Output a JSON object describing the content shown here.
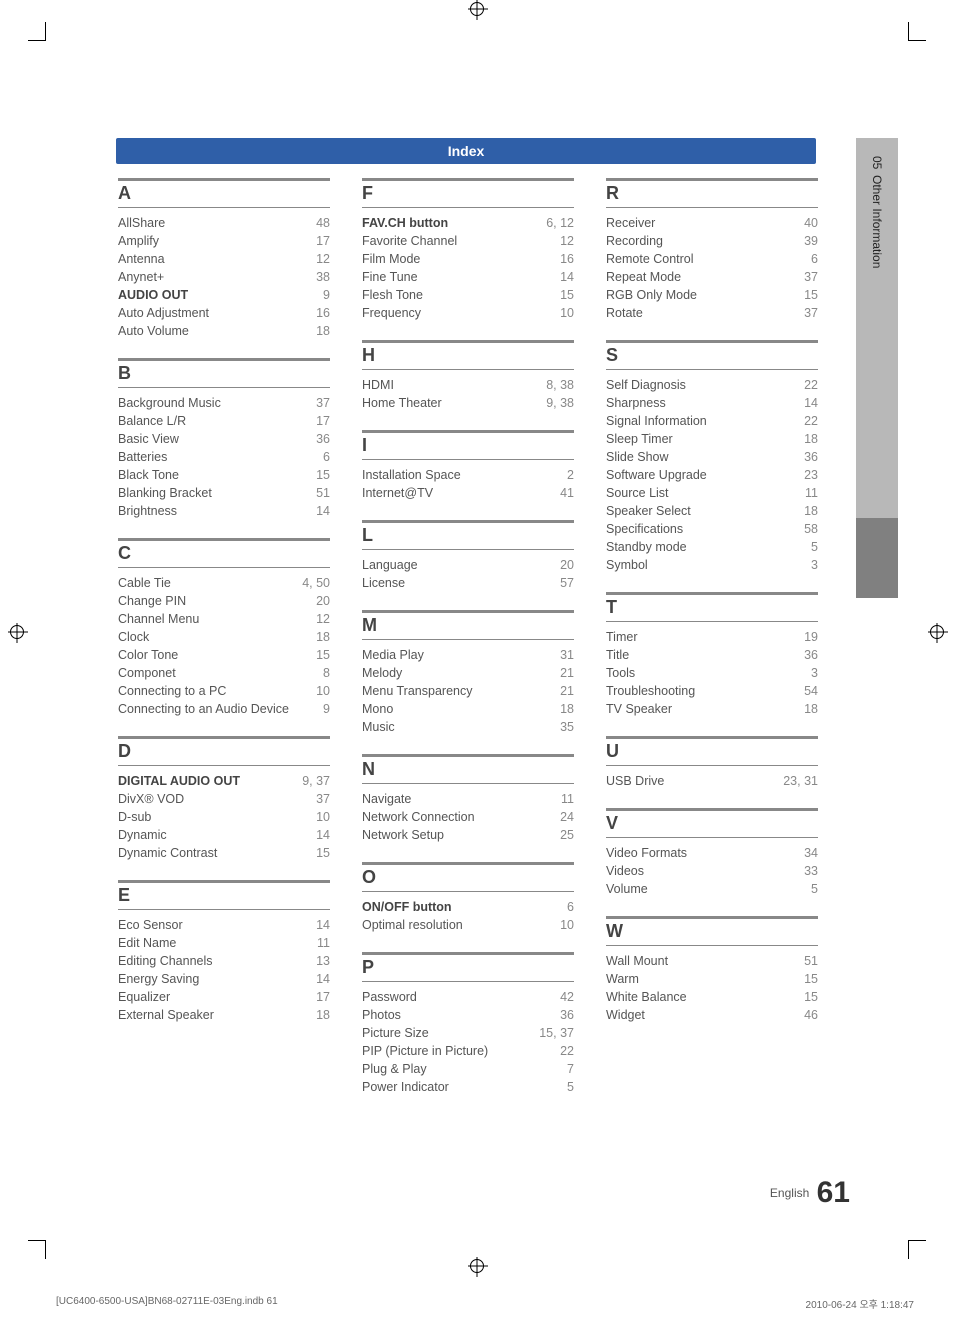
{
  "header": {
    "title": "Index"
  },
  "sidetab": {
    "chapter_num": "05",
    "chapter_title": "Other Information"
  },
  "footer": {
    "language": "English",
    "page_number": "61"
  },
  "print_info": {
    "file": "[UC6400-6500-USA]BN68-02711E-03Eng.indb   61",
    "timestamp": "2010-06-24   오후 1:18:47"
  },
  "columns": [
    [
      {
        "letter": "A",
        "entries": [
          {
            "term": "AllShare",
            "page": "48"
          },
          {
            "term": "Amplify",
            "page": "17"
          },
          {
            "term": "Antenna",
            "page": "12"
          },
          {
            "term": "Anynet+",
            "page": "38"
          },
          {
            "term": "AUDIO OUT",
            "page": "9",
            "bold": true
          },
          {
            "term": "Auto Adjustment",
            "page": "16"
          },
          {
            "term": "Auto Volume",
            "page": "18"
          }
        ]
      },
      {
        "letter": "B",
        "entries": [
          {
            "term": "Background Music",
            "page": "37"
          },
          {
            "term": "Balance L/R",
            "page": "17"
          },
          {
            "term": "Basic View",
            "page": "36"
          },
          {
            "term": "Batteries",
            "page": "6"
          },
          {
            "term": "Black Tone",
            "page": "15"
          },
          {
            "term": "Blanking Bracket",
            "page": "51"
          },
          {
            "term": "Brightness",
            "page": "14"
          }
        ]
      },
      {
        "letter": "C",
        "entries": [
          {
            "term": "Cable Tie",
            "page": "4, 50"
          },
          {
            "term": "Change PIN",
            "page": "20"
          },
          {
            "term": "Channel Menu",
            "page": "12"
          },
          {
            "term": "Clock",
            "page": "18"
          },
          {
            "term": "Color Tone",
            "page": "15"
          },
          {
            "term": "Componet",
            "page": "8"
          },
          {
            "term": "Connecting to a PC",
            "page": "10"
          },
          {
            "term": "Connecting to an Audio Device",
            "page": "9"
          }
        ]
      },
      {
        "letter": "D",
        "entries": [
          {
            "term": "DIGITAL AUDIO OUT",
            "page": "9, 37",
            "bold": true
          },
          {
            "term": "DivX® VOD",
            "page": "37"
          },
          {
            "term": "D-sub",
            "page": "10"
          },
          {
            "term": "Dynamic",
            "page": "14"
          },
          {
            "term": "Dynamic Contrast",
            "page": "15"
          }
        ]
      },
      {
        "letter": "E",
        "entries": [
          {
            "term": "Eco Sensor",
            "page": "14"
          },
          {
            "term": "Edit Name",
            "page": "11"
          },
          {
            "term": "Editing Channels",
            "page": "13"
          },
          {
            "term": "Energy Saving",
            "page": "14"
          },
          {
            "term": "Equalizer",
            "page": "17"
          },
          {
            "term": "External Speaker",
            "page": "18"
          }
        ]
      }
    ],
    [
      {
        "letter": "F",
        "entries": [
          {
            "term": "FAV.CH button",
            "page": "6, 12",
            "bold": true
          },
          {
            "term": "Favorite Channel",
            "page": "12"
          },
          {
            "term": "Film Mode",
            "page": "16"
          },
          {
            "term": "Fine Tune",
            "page": "14"
          },
          {
            "term": "Flesh Tone",
            "page": "15"
          },
          {
            "term": "Frequency",
            "page": "10"
          }
        ]
      },
      {
        "letter": "H",
        "entries": [
          {
            "term": "HDMI",
            "page": "8, 38"
          },
          {
            "term": "Home Theater",
            "page": "9, 38"
          }
        ]
      },
      {
        "letter": "I",
        "entries": [
          {
            "term": "Installation Space",
            "page": "2"
          },
          {
            "term": "Internet@TV",
            "page": "41"
          }
        ]
      },
      {
        "letter": "L",
        "entries": [
          {
            "term": "Language",
            "page": "20"
          },
          {
            "term": "License",
            "page": "57"
          }
        ]
      },
      {
        "letter": "M",
        "entries": [
          {
            "term": "Media Play",
            "page": "31"
          },
          {
            "term": "Melody",
            "page": "21"
          },
          {
            "term": "Menu Transparency",
            "page": "21"
          },
          {
            "term": "Mono",
            "page": "18"
          },
          {
            "term": "Music",
            "page": "35"
          }
        ]
      },
      {
        "letter": "N",
        "entries": [
          {
            "term": "Navigate",
            "page": "11"
          },
          {
            "term": "Network Connection",
            "page": "24"
          },
          {
            "term": "Network Setup",
            "page": "25"
          }
        ]
      },
      {
        "letter": "O",
        "entries": [
          {
            "term": "ON/OFF button",
            "page": "6",
            "bold": true
          },
          {
            "term": "Optimal resolution",
            "page": "10"
          }
        ]
      },
      {
        "letter": "P",
        "entries": [
          {
            "term": "Password",
            "page": "42"
          },
          {
            "term": "Photos",
            "page": "36"
          },
          {
            "term": "Picture Size",
            "page": "15, 37"
          },
          {
            "term": "PIP (Picture in Picture)",
            "page": "22"
          },
          {
            "term": "Plug & Play",
            "page": "7"
          },
          {
            "term": "Power Indicator",
            "page": "5"
          }
        ]
      }
    ],
    [
      {
        "letter": "R",
        "entries": [
          {
            "term": "Receiver",
            "page": "40"
          },
          {
            "term": "Recording",
            "page": "39"
          },
          {
            "term": "Remote Control",
            "page": "6"
          },
          {
            "term": "Repeat Mode",
            "page": "37"
          },
          {
            "term": "RGB Only Mode",
            "page": "15"
          },
          {
            "term": "Rotate",
            "page": "37"
          }
        ]
      },
      {
        "letter": "S",
        "entries": [
          {
            "term": "Self Diagnosis",
            "page": "22"
          },
          {
            "term": "Sharpness",
            "page": "14"
          },
          {
            "term": "Signal Information",
            "page": "22"
          },
          {
            "term": "Sleep Timer",
            "page": "18"
          },
          {
            "term": "Slide Show",
            "page": "36"
          },
          {
            "term": "Software Upgrade",
            "page": "23"
          },
          {
            "term": "Source List",
            "page": "11"
          },
          {
            "term": "Speaker Select",
            "page": "18"
          },
          {
            "term": "Specifications",
            "page": "58"
          },
          {
            "term": "Standby mode",
            "page": "5"
          },
          {
            "term": "Symbol",
            "page": "3"
          }
        ]
      },
      {
        "letter": "T",
        "entries": [
          {
            "term": "Timer",
            "page": "19"
          },
          {
            "term": "Title",
            "page": "36"
          },
          {
            "term": "Tools",
            "page": "3"
          },
          {
            "term": "Troubleshooting",
            "page": "54"
          },
          {
            "term": "TV Speaker",
            "page": "18"
          }
        ]
      },
      {
        "letter": "U",
        "entries": [
          {
            "term": "USB Drive",
            "page": "23, 31"
          }
        ]
      },
      {
        "letter": "V",
        "entries": [
          {
            "term": "Video Formats",
            "page": "34"
          },
          {
            "term": "Videos",
            "page": "33"
          },
          {
            "term": "Volume",
            "page": "5"
          }
        ]
      },
      {
        "letter": "W",
        "entries": [
          {
            "term": "Wall Mount",
            "page": "51"
          },
          {
            "term": "Warm",
            "page": "15"
          },
          {
            "term": "White Balance",
            "page": "15"
          },
          {
            "term": "Widget",
            "page": "46"
          }
        ]
      }
    ]
  ]
}
